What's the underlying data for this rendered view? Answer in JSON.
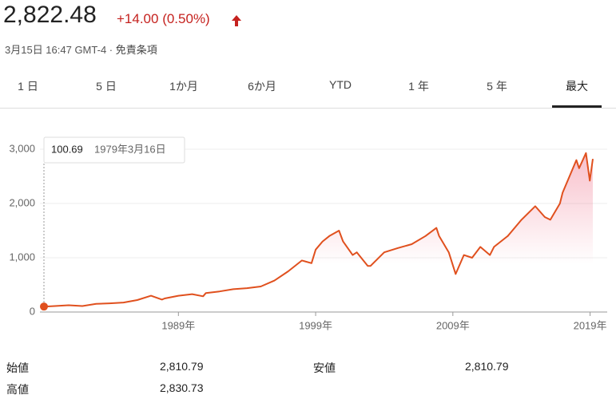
{
  "header": {
    "price": "2,822.48",
    "change": "+14.00 (0.50%)",
    "timestamp": "3月15日 16:47 GMT-4 · ",
    "disclaimer": "免責条項"
  },
  "tabs": [
    "1 日",
    "5 日",
    "1か月",
    "6か月",
    "YTD",
    "1 年",
    "5 年",
    "最大"
  ],
  "selected_tab": 7,
  "tooltip": {
    "value": "100.69",
    "date": "1979年3月16日"
  },
  "chart_data": {
    "type": "line",
    "x": [
      1979.2,
      1980,
      1981,
      1982,
      1983,
      1984,
      1985,
      1986,
      1987,
      1987.8,
      1988,
      1989,
      1990,
      1990.8,
      1991,
      1992,
      1993,
      1994,
      1995,
      1996,
      1997,
      1998,
      1998.7,
      1999,
      1999.5,
      2000,
      2000.7,
      2001,
      2001.7,
      2002,
      2002.8,
      2003,
      2004,
      2005,
      2006,
      2007,
      2007.8,
      2008,
      2008.7,
      2009.2,
      2009.8,
      2010.4,
      2011,
      2011.7,
      2012,
      2013,
      2014,
      2015,
      2015.7,
      2016.1,
      2016.8,
      2017,
      2018,
      2018.2,
      2018.7,
      2018.98,
      2019.2
    ],
    "values": [
      100.69,
      110,
      125,
      110,
      150,
      160,
      175,
      220,
      300,
      230,
      250,
      300,
      330,
      290,
      350,
      380,
      420,
      440,
      470,
      580,
      750,
      950,
      900,
      1150,
      1300,
      1400,
      1500,
      1300,
      1050,
      1100,
      850,
      850,
      1100,
      1180,
      1250,
      1400,
      1550,
      1400,
      1100,
      700,
      1050,
      1000,
      1200,
      1050,
      1200,
      1400,
      1700,
      1950,
      1750,
      1700,
      2000,
      2200,
      2800,
      2650,
      2930,
      2420,
      2822.48
    ],
    "color": "#e0501e",
    "xlim": [
      1979.2,
      2019.2
    ],
    "xticks": [
      {
        "value": 1989,
        "label": "1989年"
      },
      {
        "value": 1999,
        "label": "1999年"
      },
      {
        "value": 2009,
        "label": "2009年"
      },
      {
        "value": 2019,
        "label": "2019年"
      }
    ],
    "ylim": [
      0,
      3000
    ],
    "yticks": [
      0,
      {
        "value": 1000,
        "label": "1,000"
      },
      {
        "value": 2000,
        "label": "2,000"
      },
      {
        "value": 3000,
        "label": "3,000"
      }
    ],
    "grid": true
  },
  "stats": [
    [
      "始値",
      "2,810.79",
      "安値",
      "2,810.79"
    ],
    [
      "高値",
      "2,830.73"
    ]
  ]
}
